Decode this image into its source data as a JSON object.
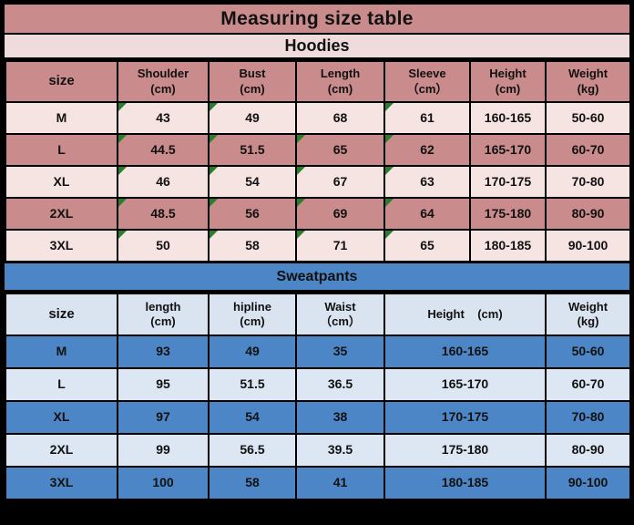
{
  "title": "Measuring size table",
  "colors": {
    "salmon": "#c98b8b",
    "light_pink": "#f5e4e2",
    "bar_pink": "#efdbdb",
    "blue": "#4c86c6",
    "light_blue": "#dce7f3",
    "sweat_header_blue": "#d9e4f0",
    "border_black": "#000000",
    "corner_mark_green": "#2a7e2a"
  },
  "hoodies": {
    "section_label": "Hoodies",
    "size_header": "size",
    "columns": [
      [
        "Shoulder",
        "(cm)"
      ],
      [
        "Bust",
        "(cm)"
      ],
      [
        "Length",
        "(cm)"
      ],
      [
        "Sleeve",
        "（cm）"
      ],
      [
        "Height",
        "(cm)"
      ],
      [
        "Weight",
        "(kg)"
      ]
    ],
    "rows": [
      {
        "size": "M",
        "values": [
          "43",
          "49",
          "68",
          "61",
          "160-165",
          "50-60"
        ],
        "marks": [
          true,
          true,
          false,
          true,
          false,
          false
        ]
      },
      {
        "size": "L",
        "values": [
          "44.5",
          "51.5",
          "65",
          "62",
          "165-170",
          "60-70"
        ],
        "marks": [
          true,
          true,
          true,
          true,
          false,
          false
        ]
      },
      {
        "size": "XL",
        "values": [
          "46",
          "54",
          "67",
          "63",
          "170-175",
          "70-80"
        ],
        "marks": [
          true,
          true,
          true,
          true,
          false,
          false
        ]
      },
      {
        "size": "2XL",
        "values": [
          "48.5",
          "56",
          "69",
          "64",
          "175-180",
          "80-90"
        ],
        "marks": [
          true,
          true,
          true,
          true,
          false,
          false
        ]
      },
      {
        "size": "3XL",
        "values": [
          "50",
          "58",
          "71",
          "65",
          "180-185",
          "90-100"
        ],
        "marks": [
          true,
          true,
          true,
          true,
          false,
          false
        ]
      }
    ]
  },
  "sweatpants": {
    "section_label": "Sweatpants",
    "size_header": "size",
    "columns": [
      [
        "length",
        "(cm)"
      ],
      [
        "hipline",
        "(cm)"
      ],
      [
        "Waist",
        "（cm）"
      ],
      [
        "Height    (cm)"
      ],
      [
        "Weight",
        "(kg)"
      ]
    ],
    "rows": [
      {
        "size": "M",
        "values": [
          "93",
          "49",
          "35",
          "160-165",
          "50-60"
        ]
      },
      {
        "size": "L",
        "values": [
          "95",
          "51.5",
          "36.5",
          "165-170",
          "60-70"
        ]
      },
      {
        "size": "XL",
        "values": [
          "97",
          "54",
          "38",
          "170-175",
          "70-80"
        ]
      },
      {
        "size": "2XL",
        "values": [
          "99",
          "56.5",
          "39.5",
          "175-180",
          "80-90"
        ]
      },
      {
        "size": "3XL",
        "values": [
          "100",
          "58",
          "41",
          "180-185",
          "90-100"
        ]
      }
    ]
  }
}
